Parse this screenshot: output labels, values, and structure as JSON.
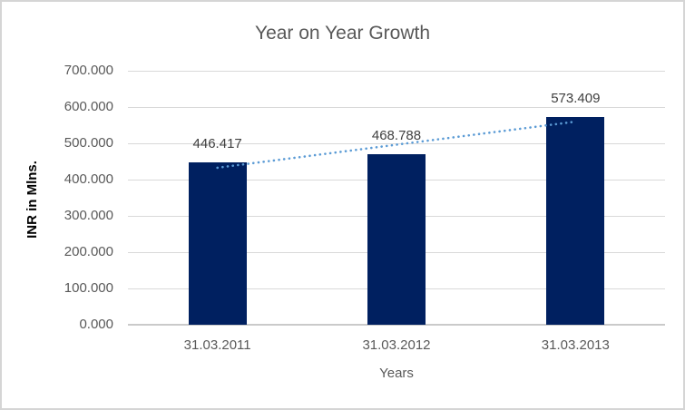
{
  "chart_data": {
    "type": "bar",
    "title": "Year on Year Growth",
    "xlabel": "Years",
    "ylabel": "INR in Mlns.",
    "categories": [
      "31.03.2011",
      "31.03.2012",
      "31.03.2013"
    ],
    "values": [
      446.417,
      468.788,
      573.409
    ],
    "data_labels": [
      "446.417",
      "468.788",
      "573.409"
    ],
    "y_ticks": [
      "0.000",
      "100.000",
      "200.000",
      "300.000",
      "400.000",
      "500.000",
      "600.000",
      "700.000"
    ],
    "ylim": [
      0,
      700
    ],
    "grid": true,
    "legend": "none",
    "trendline": {
      "type": "linear",
      "style": "dotted",
      "start_value": 432.71,
      "end_value": 559.7
    },
    "colors": {
      "bar": "#002060",
      "trendline": "#5B9BD5",
      "gridline": "#D9D9D9",
      "axis_line": "#CACACA",
      "title_text": "#595959",
      "tick_text": "#595959",
      "data_label_text": "#404040",
      "axis_title_text": "#000000",
      "border": "#D5D5D5"
    }
  }
}
